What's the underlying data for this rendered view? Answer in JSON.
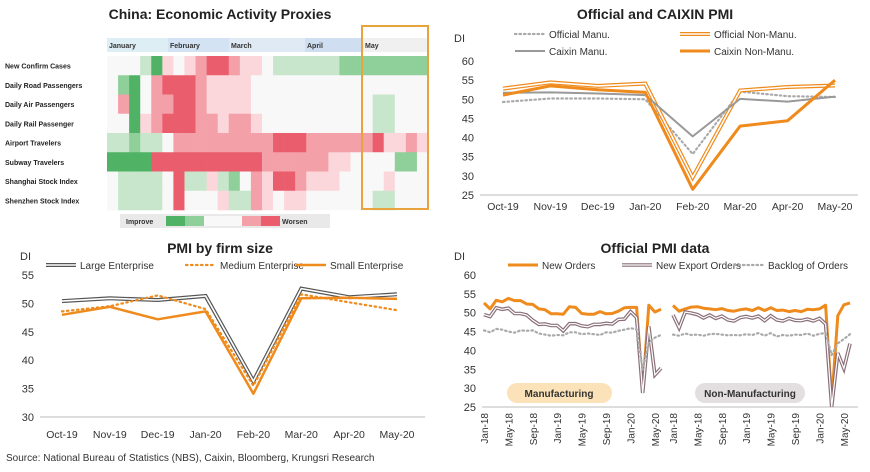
{
  "heatmap": {
    "title": "China: Economic Activity Proxies",
    "months": [
      "January",
      "February",
      "March",
      "April",
      "May"
    ],
    "rows": [
      "New Confirm Cases",
      "Daily Road Passengers",
      "Daily Air Passengers",
      "Daily Rail Passenger",
      "Airport Travelers",
      "Subway Travelers",
      "Shanghai Stock Index",
      "Shenzhen Stock Index"
    ],
    "legend": {
      "left": "Improve",
      "right": "Worsen"
    },
    "highlight_color": "#e8a33d"
  },
  "pmi_official_caixin": {
    "title": "Official and CAIXIN PMI",
    "unit": "DI",
    "legend": [
      "Official Manu.",
      "Official Non-Manu.",
      "Caixin Manu.",
      "Caixin Non-Manu."
    ]
  },
  "pmi_firm_size": {
    "title": "PMI by firm size",
    "unit": "DI",
    "legend": [
      "Large Enterprise",
      "Medium Enterprise",
      "Small Enterprise"
    ]
  },
  "pmi_official_data": {
    "title": "Official PMI data",
    "unit": "DI",
    "legend": [
      "New Orders",
      "New Export Orders",
      "Backlog of Orders"
    ],
    "labels": {
      "manufacturing": "Manufacturing",
      "non_manufacturing": "Non-Manufacturing"
    }
  },
  "source": "Source: National Bureau of Statistics (NBS), Caixin, Bloomberg, Krungsri Research",
  "colors": {
    "orange": "#ef8a1c",
    "grey": "#999999",
    "dotted": "#aaaaaa",
    "green": "#4aaa5c",
    "red": "#e8495a"
  },
  "chart_data": [
    {
      "type": "heatmap",
      "title": "China: Economic Activity Proxies",
      "x": [
        "January",
        "February",
        "March",
        "April",
        "May"
      ],
      "y": [
        "New Confirm Cases",
        "Daily Road Passengers",
        "Daily Air Passengers",
        "Daily Rail Passenger",
        "Airport Travelers",
        "Subway Travelers",
        "Shanghai Stock Index",
        "Shenzhen Stock Index"
      ],
      "scale": {
        "-3": "improve (strong green)",
        "0": "neutral",
        "3": "worsen (strong red)"
      },
      "values": [
        [
          0,
          0,
          0,
          -1,
          -3,
          1,
          0,
          1,
          2,
          3,
          3,
          2,
          1,
          1,
          0,
          -1,
          -1,
          -1,
          -1,
          -1,
          -1,
          -2,
          -2,
          -2,
          -2,
          -2,
          -2,
          -2,
          -2
        ],
        [
          0,
          -2,
          -3,
          0,
          2,
          3,
          3,
          3,
          2,
          1,
          1,
          1,
          1,
          0,
          0,
          0,
          0,
          0,
          0,
          0,
          0,
          0,
          0,
          0,
          0,
          0,
          0,
          0,
          0
        ],
        [
          0,
          2,
          -3,
          0,
          2,
          2,
          3,
          3,
          2,
          1,
          1,
          1,
          1,
          0,
          0,
          0,
          0,
          0,
          0,
          0,
          0,
          0,
          0,
          0,
          -1,
          -1,
          0,
          0,
          0
        ],
        [
          0,
          0,
          -3,
          1,
          2,
          3,
          3,
          3,
          2,
          2,
          1,
          2,
          2,
          1,
          0,
          0,
          0,
          0,
          0,
          0,
          0,
          0,
          0,
          0,
          -1,
          -1,
          0,
          0,
          0
        ],
        [
          -1,
          -1,
          -2,
          -1,
          -1,
          0,
          2,
          2,
          2,
          2,
          2,
          2,
          2,
          2,
          2,
          3,
          3,
          3,
          2,
          2,
          2,
          2,
          2,
          2,
          3,
          1,
          1,
          2,
          1
        ],
        [
          -3,
          -3,
          -3,
          -3,
          3,
          3,
          3,
          3,
          3,
          3,
          3,
          3,
          3,
          3,
          2,
          2,
          2,
          2,
          2,
          2,
          1,
          1,
          0,
          0,
          0,
          0,
          -2,
          -2,
          0
        ],
        [
          0,
          -1,
          -1,
          -1,
          -1,
          0,
          3,
          -1,
          -1,
          1,
          -1,
          -2,
          0,
          2,
          1,
          3,
          3,
          2,
          1,
          1,
          1,
          0,
          0,
          0,
          0,
          1,
          0,
          0,
          0
        ],
        [
          0,
          -1,
          -1,
          -1,
          -1,
          0,
          3,
          0,
          0,
          0,
          1,
          -1,
          -1,
          2,
          1,
          0,
          1,
          1,
          0,
          0,
          0,
          0,
          0,
          0,
          -1,
          -1,
          0,
          0,
          0
        ]
      ]
    },
    {
      "type": "line",
      "title": "Official and CAIXIN PMI",
      "ylabel": "DI",
      "ylim": [
        25,
        60
      ],
      "categories": [
        "Oct-19",
        "Nov-19",
        "Dec-19",
        "Jan-20",
        "Feb-20",
        "Mar-20",
        "Apr-20",
        "May-20"
      ],
      "series": [
        {
          "name": "Official Manu.",
          "values": [
            49.3,
            50.2,
            50.2,
            50.0,
            35.7,
            52.0,
            50.8,
            50.6
          ]
        },
        {
          "name": "Official Non-Manu.",
          "values": [
            52.8,
            54.4,
            53.5,
            54.1,
            29.6,
            52.3,
            53.2,
            53.6
          ]
        },
        {
          "name": "Caixin Manu.",
          "values": [
            51.7,
            51.8,
            51.5,
            51.1,
            40.3,
            50.1,
            49.4,
            50.7
          ]
        },
        {
          "name": "Caixin Non-Manu.",
          "values": [
            51.1,
            53.5,
            52.5,
            51.8,
            26.5,
            43.0,
            44.4,
            55.0
          ]
        }
      ]
    },
    {
      "type": "line",
      "title": "PMI by firm size",
      "ylabel": "DI",
      "ylim": [
        30,
        55
      ],
      "categories": [
        "Oct-19",
        "Nov-19",
        "Dec-19",
        "Jan-20",
        "Feb-20",
        "Mar-20",
        "Apr-20",
        "May-20"
      ],
      "series": [
        {
          "name": "Large Enterprise",
          "values": [
            50.4,
            50.9,
            50.6,
            51.3,
            36.3,
            52.6,
            51.1,
            51.6
          ]
        },
        {
          "name": "Medium Enterprise",
          "values": [
            48.6,
            49.5,
            51.4,
            49.0,
            35.5,
            51.6,
            50.2,
            48.8
          ]
        },
        {
          "name": "Small Enterprise",
          "values": [
            48.0,
            49.4,
            47.2,
            48.6,
            34.1,
            50.9,
            51.0,
            50.8
          ]
        }
      ]
    },
    {
      "type": "line",
      "title": "Official PMI data",
      "ylabel": "DI",
      "ylim": [
        25,
        60
      ],
      "categories": [
        "Jan-18",
        "May-18",
        "Sep-18",
        "Jan-19",
        "May-19",
        "Sep-19",
        "Jan-20",
        "May-20"
      ],
      "panels": [
        {
          "name": "Manufacturing",
          "series": [
            {
              "name": "New Orders",
              "values": [
                52.6,
                51.0,
                53.3,
                52.9,
                53.8,
                53.2,
                53.2,
                52.3,
                52.2,
                51.0,
                50.8,
                49.7,
                49.7,
                49.6,
                51.6,
                51.4,
                49.8,
                49.6,
                49.6,
                50.3,
                49.7,
                49.8,
                50.4,
                51.3,
                51.4,
                51.4,
                29.3,
                52.0,
                50.2,
                50.9
              ]
            },
            {
              "name": "New Export Orders",
              "values": [
                49.5,
                49.0,
                51.3,
                50.9,
                51.2,
                49.8,
                49.8,
                49.4,
                48.0,
                46.9,
                47.0,
                46.6,
                46.6,
                45.2,
                47.1,
                47.1,
                46.5,
                46.3,
                46.9,
                46.9,
                47.2,
                47.0,
                48.2,
                48.3,
                50.3,
                48.7,
                28.7,
                46.4,
                33.5,
                35.3
              ]
            },
            {
              "name": "Backlog of Orders",
              "values": [
                45.3,
                44.8,
                45.7,
                45.5,
                45.0,
                44.7,
                45.3,
                45.2,
                45.3,
                44.5,
                44.2,
                43.9,
                44.1,
                44.0,
                44.8,
                44.8,
                44.3,
                44.5,
                44.3,
                44.1,
                44.8,
                44.7,
                45.2,
                45.5,
                45.9,
                45.6,
                34.9,
                42.1,
                43.4,
                44.1
              ]
            }
          ]
        },
        {
          "name": "Non-Manufacturing",
          "series": [
            {
              "name": "New Orders",
              "values": [
                51.9,
                50.4,
                51.0,
                51.5,
                51.6,
                51.2,
                51.0,
                50.8,
                51.1,
                50.6,
                50.4,
                50.8,
                51.0,
                50.6,
                51.3,
                50.6,
                51.3,
                50.6,
                50.7,
                50.3,
                50.6,
                50.3,
                50.9,
                50.8,
                51.0,
                52.0,
                26.5,
                49.2,
                52.1,
                52.6
              ]
            },
            {
              "name": "New Export Orders",
              "values": [
                49.4,
                46.0,
                50.2,
                49.9,
                49.5,
                48.6,
                49.4,
                48.5,
                49.1,
                48.1,
                47.8,
                48.7,
                49.0,
                48.6,
                49.1,
                47.9,
                49.2,
                48.1,
                47.8,
                48.5,
                48.0,
                47.9,
                48.3,
                47.8,
                48.5,
                47.0,
                25.1,
                39.3,
                35.2,
                41.8
              ]
            },
            {
              "name": "Backlog of Orders",
              "values": [
                44.2,
                43.9,
                44.5,
                44.1,
                44.2,
                43.9,
                44.3,
                44.4,
                44.2,
                44.0,
                44.1,
                44.0,
                44.3,
                44.1,
                44.6,
                43.9,
                44.6,
                43.7,
                44.1,
                43.9,
                44.2,
                44.1,
                44.5,
                43.9,
                44.4,
                44.6,
                38.8,
                41.9,
                43.0,
                44.3
              ]
            }
          ]
        }
      ]
    }
  ]
}
